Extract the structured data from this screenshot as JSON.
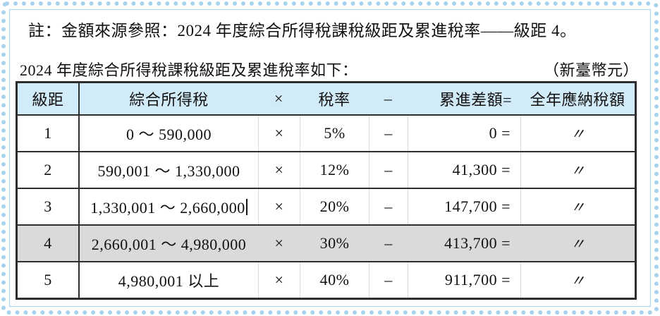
{
  "note": "註：金額來源參照：2024 年度綜合所得稅課稅級距及累進稅率——級距 4。",
  "caption": "2024 年度綜合所得稅課稅級距及累進稅率如下：",
  "unit_label": "（新臺幣元）",
  "table": {
    "headers": {
      "bracket": "級距",
      "income": "綜合所得稅",
      "times": "×",
      "rate": "稅率",
      "minus": "–",
      "difference": "累進差額=",
      "annual": "全年應納稅額"
    },
    "rows": [
      {
        "bracket": "1",
        "income": "0 ～ 590,000",
        "times": "×",
        "rate": "5%",
        "minus": "–",
        "difference": "0 =",
        "annual": "〃"
      },
      {
        "bracket": "2",
        "income": "590,001 ～ 1,330,000",
        "times": "×",
        "rate": "12%",
        "minus": "–",
        "difference": "41,300 =",
        "annual": "〃"
      },
      {
        "bracket": "3",
        "income": "1,330,001 ～ 2,660,000",
        "times": "×",
        "rate": "20%",
        "minus": "–",
        "difference": "147,700 =",
        "annual": "〃"
      },
      {
        "bracket": "4",
        "income": "2,660,001 ～ 4,980,000",
        "times": "×",
        "rate": "30%",
        "minus": "–",
        "difference": "413,700 =",
        "annual": "〃"
      },
      {
        "bracket": "5",
        "income": "4,980,001 以上",
        "times": "×",
        "rate": "40%",
        "minus": "–",
        "difference": "911,700 =",
        "annual": "〃"
      }
    ],
    "highlighted_row": 4,
    "text_cursor_row": 3
  },
  "colors": {
    "header_bg": "#d2ebf8",
    "highlight_bg": "#dadada",
    "frame_blue": "#a6d2ec",
    "table_border": "#2e2e2e"
  }
}
